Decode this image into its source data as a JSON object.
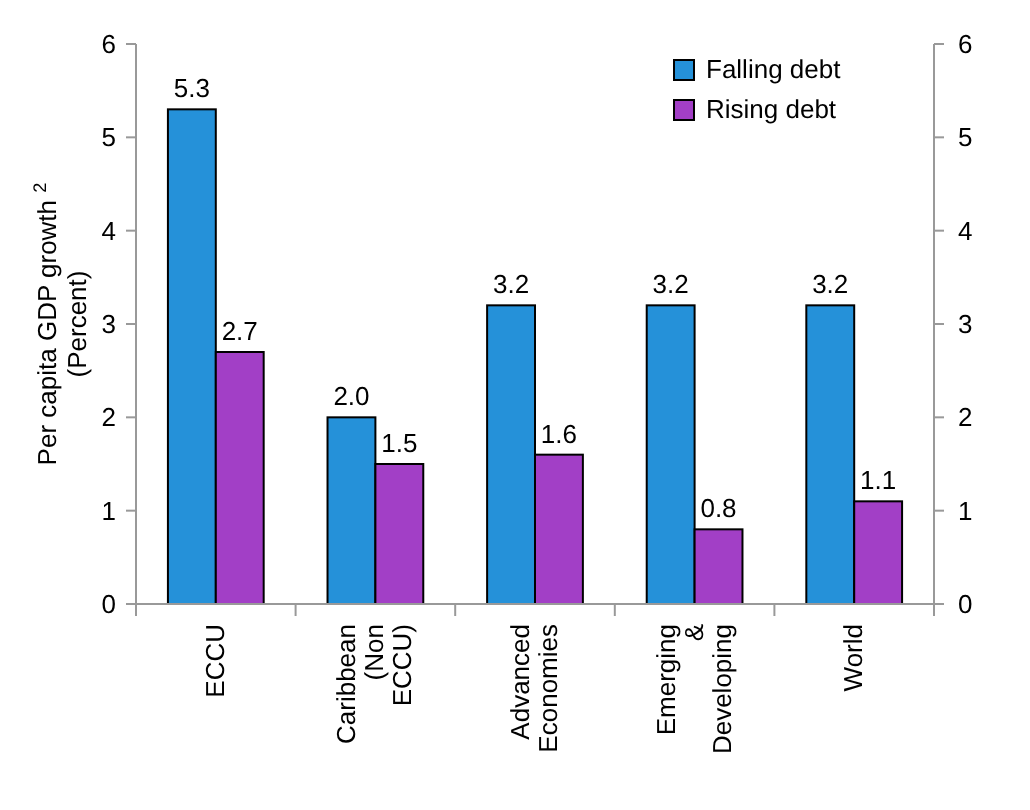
{
  "chart_data": {
    "type": "bar",
    "ylabel": "Per capita GDP growth $^{2}$\n(Percent)",
    "categories": [
      "ECCU",
      "Caribbean (Non ECCU)",
      "Advanced Economies",
      "Emerging & Developing",
      "World"
    ],
    "series": [
      {
        "name": "Falling debt",
        "color": "#2591d9",
        "values": [
          5.3,
          2.0,
          3.2,
          3.2,
          3.2
        ],
        "value_labels": [
          "5.3",
          "2.0",
          "3.2",
          "3.2",
          "3.2"
        ]
      },
      {
        "name": "Rising debt",
        "color": "#a23fc6",
        "values": [
          2.7,
          1.5,
          1.6,
          0.8,
          1.1
        ],
        "value_labels": [
          "2.7",
          "1.5",
          "1.6",
          "0.8",
          "1.1"
        ]
      }
    ],
    "ylim": [
      0,
      6
    ],
    "yticks": [
      0,
      1,
      2,
      3,
      4,
      5,
      6
    ],
    "y2lim": [
      0,
      6
    ],
    "y2ticks": [
      0,
      1,
      2,
      3,
      4,
      5,
      6
    ],
    "legend": "top right",
    "grid": false
  }
}
